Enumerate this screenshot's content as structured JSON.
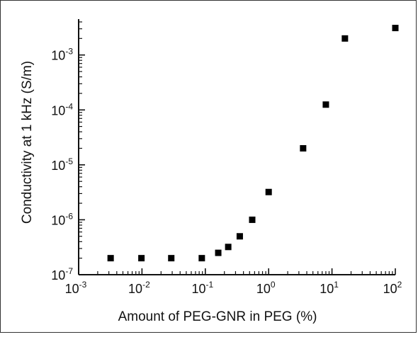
{
  "chart_data": {
    "type": "scatter",
    "xlabel": "Amount of PEG-GNR in PEG (%)",
    "ylabel": "Conductivity at 1 kHz (S/m)",
    "xscale": "log",
    "yscale": "log",
    "xlim": [
      0.001,
      100
    ],
    "ylim": [
      1e-07,
      0.0045
    ],
    "grid": false,
    "x_ticks": [
      {
        "base": "10",
        "exp": "-3",
        "value": 0.001
      },
      {
        "base": "10",
        "exp": "-2",
        "value": 0.01
      },
      {
        "base": "10",
        "exp": "-1",
        "value": 0.1
      },
      {
        "base": "10",
        "exp": "0",
        "value": 1
      },
      {
        "base": "10",
        "exp": "1",
        "value": 10
      },
      {
        "base": "10",
        "exp": "2",
        "value": 100
      }
    ],
    "y_ticks": [
      {
        "base": "10",
        "exp": "-7",
        "value": 1e-07
      },
      {
        "base": "10",
        "exp": "-6",
        "value": 1e-06
      },
      {
        "base": "10",
        "exp": "-5",
        "value": 1e-05
      },
      {
        "base": "10",
        "exp": "-4",
        "value": 0.0001
      },
      {
        "base": "10",
        "exp": "-3",
        "value": 0.001
      }
    ],
    "points": [
      {
        "x": 0.0032,
        "y": 2e-07
      },
      {
        "x": 0.0098,
        "y": 2e-07
      },
      {
        "x": 0.029,
        "y": 2e-07
      },
      {
        "x": 0.088,
        "y": 2e-07
      },
      {
        "x": 0.16,
        "y": 2.5e-07
      },
      {
        "x": 0.23,
        "y": 3.2e-07
      },
      {
        "x": 0.35,
        "y": 5e-07
      },
      {
        "x": 0.55,
        "y": 1e-06
      },
      {
        "x": 1.0,
        "y": 3.2e-06
      },
      {
        "x": 3.5,
        "y": 2e-05
      },
      {
        "x": 8.0,
        "y": 0.000125
      },
      {
        "x": 16,
        "y": 0.002
      },
      {
        "x": 100,
        "y": 0.0031
      }
    ]
  }
}
